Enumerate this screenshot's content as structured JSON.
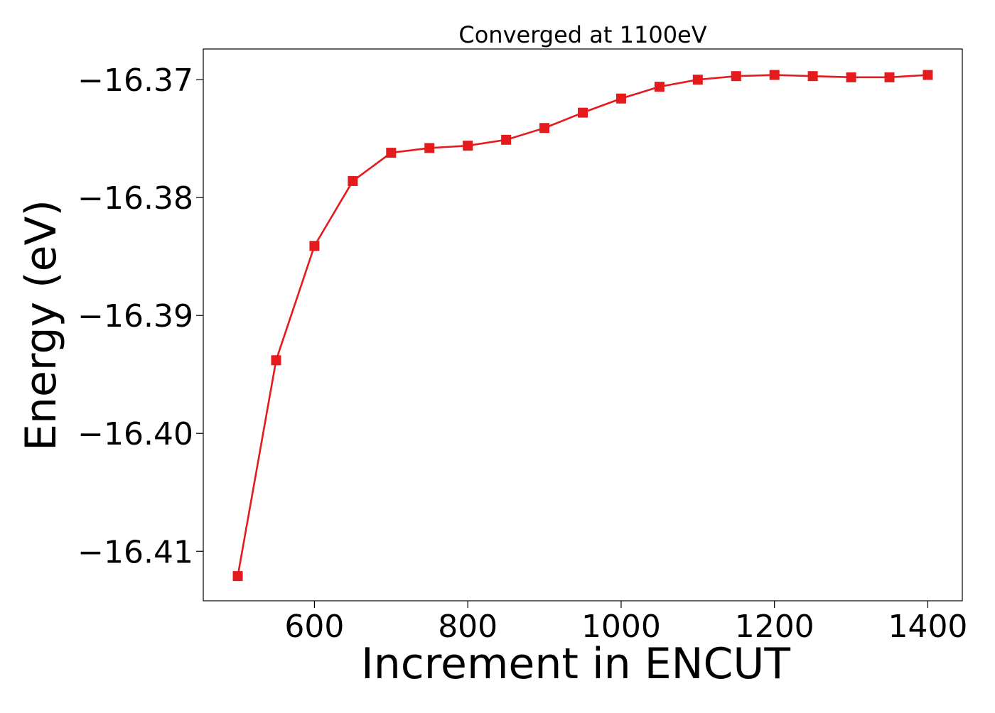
{
  "chart_data": {
    "type": "line",
    "title": "Converged at 1100eV",
    "xlabel": "Increment in ENCUT",
    "ylabel": "Energy (eV)",
    "xlim": [
      455,
      1445
    ],
    "ylim": [
      -16.4142,
      -16.3674
    ],
    "xticks": [
      600,
      800,
      1000,
      1200,
      1400
    ],
    "yticks": [
      -16.37,
      -16.38,
      -16.39,
      -16.4,
      -16.41
    ],
    "ytick_labels": [
      "−16.37",
      "−16.38",
      "−16.39",
      "−16.40",
      "−16.41"
    ],
    "grid": false,
    "legend": "none",
    "color": "#e41a1c",
    "marker": "square",
    "series": [
      {
        "x": [
          500,
          550,
          600,
          650,
          700,
          750,
          800,
          850,
          900,
          950,
          1000,
          1050,
          1100,
          1150,
          1200,
          1250,
          1300,
          1350,
          1400
        ],
        "y": [
          -16.4121,
          -16.3938,
          -16.3841,
          -16.3786,
          -16.3762,
          -16.3758,
          -16.3756,
          -16.3751,
          -16.3741,
          -16.3728,
          -16.3716,
          -16.3706,
          -16.37,
          -16.3697,
          -16.3696,
          -16.3697,
          -16.3698,
          -16.3698,
          -16.3696
        ]
      }
    ]
  }
}
